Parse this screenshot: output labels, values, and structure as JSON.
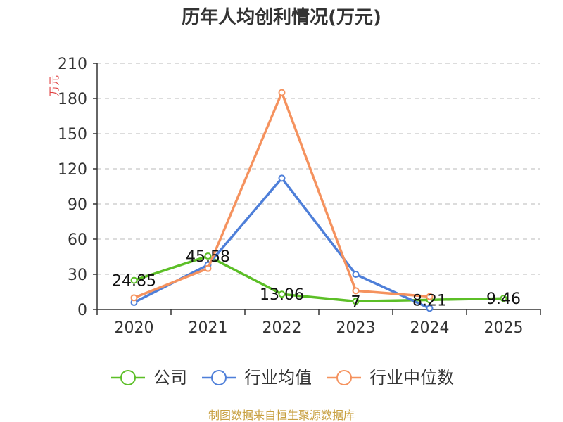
{
  "chart_data": {
    "type": "line",
    "title": "历年人均创利情况(万元)",
    "ylabel": "万元",
    "xlabel": "",
    "ylim": [
      0,
      210
    ],
    "yticks": [
      0,
      30,
      60,
      90,
      120,
      150,
      180,
      210
    ],
    "categories": [
      "2020",
      "2021",
      "2022",
      "2023",
      "2024",
      "2025"
    ],
    "series": [
      {
        "name": "公司",
        "color": "#5cbf27",
        "values": [
          24.85,
          45.58,
          13.06,
          7,
          8.21,
          9.46
        ],
        "labels": [
          "24.85",
          "45.58",
          "13.06",
          "7",
          "8.21",
          "9.46"
        ]
      },
      {
        "name": "行业均值",
        "color": "#4e7fd9",
        "values": [
          6,
          38,
          112,
          30,
          1,
          null
        ]
      },
      {
        "name": "行业中位数",
        "color": "#f5925e",
        "values": [
          10,
          35,
          185,
          16,
          11,
          null
        ]
      }
    ],
    "grid": true,
    "legend": "bottom"
  },
  "source": "制图数据来自恒生聚源数据库"
}
